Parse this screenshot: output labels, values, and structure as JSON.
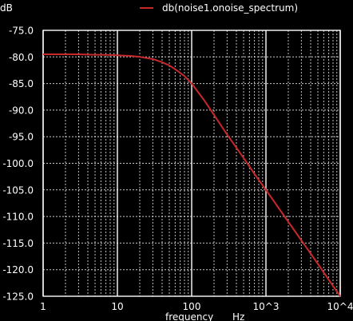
{
  "colors": {
    "background": "#000000",
    "grid": "#ffffff",
    "text": "#ffffff",
    "series": "#c8282a"
  },
  "chart_data": {
    "type": "line",
    "title": "",
    "xlabel": "frequency",
    "xunit": "Hz",
    "ylabel": "dB",
    "xscale": "log",
    "xlim": [
      1,
      10000
    ],
    "ylim": [
      -125,
      -75
    ],
    "grid": true,
    "legend": "top",
    "x_tick_labels": [
      "1",
      "10",
      "100",
      "10^3",
      "10^4"
    ],
    "y_tick_labels": [
      "-75.0",
      "-80.0",
      "-85.0",
      "-90.0",
      "-95.0",
      "-100.0",
      "-105.0",
      "-110.0",
      "-115.0",
      "-120.0",
      "-125.0"
    ],
    "series": [
      {
        "name": "db(noise1.onoise_spectrum)",
        "color": "#c8282a",
        "x": [
          1,
          2,
          3,
          5,
          7,
          10,
          15,
          20,
          30,
          40,
          50,
          60,
          70,
          80,
          100,
          150,
          200,
          300,
          500,
          700,
          1000,
          2000,
          3000,
          5000,
          7000,
          10000
        ],
        "y": [
          -79.5,
          -79.5,
          -79.5,
          -79.6,
          -79.6,
          -79.7,
          -79.8,
          -80.0,
          -80.4,
          -81.0,
          -81.6,
          -82.3,
          -83.0,
          -83.6,
          -85.0,
          -88.3,
          -90.9,
          -94.6,
          -99.0,
          -102.0,
          -105.0,
          -111.0,
          -114.5,
          -118.9,
          -121.9,
          -125.0
        ]
      }
    ]
  }
}
